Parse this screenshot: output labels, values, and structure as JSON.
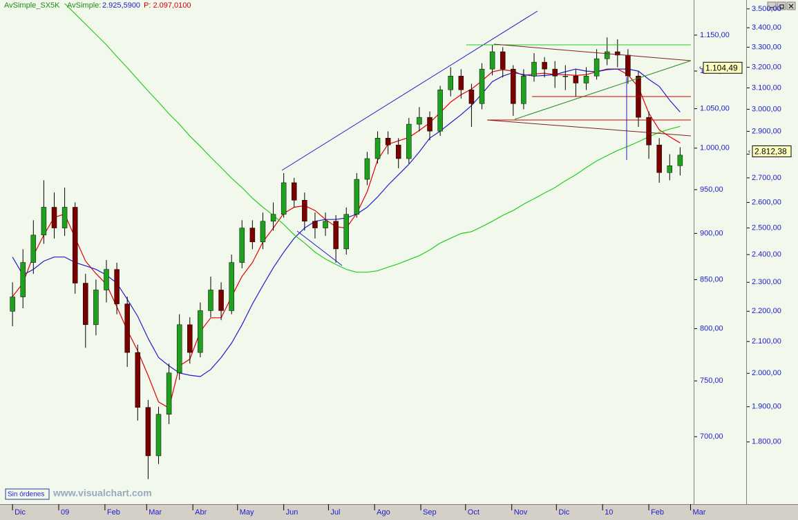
{
  "chart_data": {
    "type": "candlestick",
    "header": {
      "name": "AvSimple_SX5K",
      "label": "AvSimple:",
      "value_text": "2.925,5900",
      "p_text": "P: 2.097,0100"
    },
    "footer": {
      "status": "Sin órdenes",
      "watermark": "www.visualchart.com"
    },
    "log_scale": true,
    "grid": false,
    "up_color": "#1fa01f",
    "down_color": "#7a0000",
    "wick_color": "#000000",
    "xlim": [
      -1.2,
      65.3
    ],
    "xticks": [
      {
        "value": 0,
        "label": "Dic"
      },
      {
        "value": 4.43,
        "label": "09"
      },
      {
        "value": 8.86,
        "label": "Feb"
      },
      {
        "value": 12.86,
        "label": "Mar"
      },
      {
        "value": 17.29,
        "label": "Abr"
      },
      {
        "value": 21.57,
        "label": "May"
      },
      {
        "value": 26,
        "label": "Jun"
      },
      {
        "value": 30.29,
        "label": "Jul"
      },
      {
        "value": 34.71,
        "label": "Ago"
      },
      {
        "value": 39.14,
        "label": "Sep"
      },
      {
        "value": 43.43,
        "label": "Oct"
      },
      {
        "value": 47.86,
        "label": "Nov"
      },
      {
        "value": 52.14,
        "label": "Dic"
      },
      {
        "value": 56.57,
        "label": "10"
      },
      {
        "value": 61,
        "label": "Feb"
      },
      {
        "value": 65,
        "label": "Mar"
      }
    ],
    "ylim": [
      644,
      1201
    ],
    "yticks": [
      {
        "value": 700,
        "label": "700,00"
      },
      {
        "value": 750,
        "label": "750,00"
      },
      {
        "value": 800,
        "label": "800,00"
      },
      {
        "value": 850,
        "label": "850,00"
      },
      {
        "value": 900,
        "label": "900,00"
      },
      {
        "value": 950,
        "label": "950,00"
      },
      {
        "value": 1000,
        "label": "1.000,00"
      },
      {
        "value": 1050,
        "label": "1.050,00"
      },
      {
        "value": 1100,
        "label": "1.100,00"
      },
      {
        "value": 1150,
        "label": "1.150,00"
      }
    ],
    "y2lim": [
      1636,
      3548
    ],
    "y2ticks": [
      {
        "value": 1800,
        "label": "1.800,00"
      },
      {
        "value": 1900,
        "label": "1.900,00"
      },
      {
        "value": 2000,
        "label": "2.000,00"
      },
      {
        "value": 2100,
        "label": "2.100,00"
      },
      {
        "value": 2200,
        "label": "2.200,00"
      },
      {
        "value": 2300,
        "label": "2.300,00"
      },
      {
        "value": 2400,
        "label": "2.400,00"
      },
      {
        "value": 2500,
        "label": "2.500,00"
      },
      {
        "value": 2600,
        "label": "2.600,00"
      },
      {
        "value": 2700,
        "label": "2.700,00"
      },
      {
        "value": 2800,
        "label": "2.800,00"
      },
      {
        "value": 2900,
        "label": "2.900,00"
      },
      {
        "value": 3000,
        "label": "3.000,00"
      },
      {
        "value": 3100,
        "label": "3.100,00"
      },
      {
        "value": 3200,
        "label": "3.200,00"
      },
      {
        "value": 3300,
        "label": "3.300,00"
      },
      {
        "value": 3400,
        "label": "3.400,00"
      },
      {
        "value": 3500,
        "label": "3.500,00"
      }
    ],
    "price_markers": [
      {
        "value": 1104.49,
        "label": "1.104,49",
        "axis": "y"
      },
      {
        "value": 2812.38,
        "label": "2.812,38",
        "axis": "y2"
      }
    ],
    "ohlc": {
      "axis": "y2",
      "open": [
        2200,
        2249,
        2371,
        2473,
        2581,
        2500,
        2581,
        2297,
        2155,
        2273,
        2346,
        2225,
        2065,
        1898,
        1762,
        1878,
        2001,
        2155,
        2065,
        2202,
        2273,
        2202,
        2371,
        2500,
        2447,
        2526,
        2553,
        2680,
        2609,
        2526,
        2500,
        2526,
        2421,
        2553,
        2694,
        2781,
        2870,
        2840,
        2781,
        2932,
        2963,
        2901,
        3091,
        3157,
        3091,
        3026,
        3191,
        3277,
        3191,
        3026,
        3157,
        3225,
        3191,
        3157,
        3157,
        3123,
        3157,
        3242,
        3277,
        3260,
        3157,
        2963,
        2840,
        2722,
        2751
      ],
      "high": [
        2300,
        2420,
        2530,
        2690,
        2640,
        2660,
        2600,
        2330,
        2310,
        2380,
        2370,
        2250,
        2090,
        1920,
        1900,
        2030,
        2190,
        2180,
        2230,
        2320,
        2300,
        2400,
        2530,
        2530,
        2560,
        2600,
        2720,
        2700,
        2640,
        2560,
        2560,
        2550,
        2580,
        2720,
        2810,
        2900,
        2900,
        2870,
        2960,
        3010,
        2990,
        3110,
        3200,
        3190,
        3120,
        3220,
        3310,
        3300,
        3210,
        3190,
        3270,
        3250,
        3230,
        3210,
        3190,
        3200,
        3290,
        3350,
        3340,
        3290,
        3180,
        2990,
        2870,
        2800,
        2830
      ],
      "low": [
        2150,
        2210,
        2330,
        2440,
        2460,
        2470,
        2260,
        2080,
        2120,
        2230,
        2190,
        2020,
        1860,
        1700,
        1740,
        1850,
        1980,
        2030,
        2050,
        2180,
        2170,
        2190,
        2350,
        2420,
        2420,
        2490,
        2540,
        2580,
        2490,
        2460,
        2470,
        2370,
        2400,
        2540,
        2670,
        2760,
        2800,
        2740,
        2760,
        2900,
        2860,
        2880,
        3060,
        3050,
        2920,
        3000,
        3160,
        3150,
        2970,
        3000,
        3130,
        3150,
        3100,
        3090,
        3060,
        3090,
        3140,
        3210,
        3200,
        3120,
        2920,
        2780,
        2680,
        2690,
        2710
      ],
      "close": [
        2249,
        2371,
        2473,
        2581,
        2500,
        2581,
        2297,
        2155,
        2273,
        2346,
        2225,
        2065,
        1898,
        1762,
        1878,
        2001,
        2155,
        2065,
        2202,
        2273,
        2202,
        2371,
        2500,
        2447,
        2526,
        2553,
        2680,
        2609,
        2526,
        2500,
        2526,
        2421,
        2553,
        2694,
        2781,
        2870,
        2840,
        2781,
        2932,
        2963,
        2901,
        3091,
        3157,
        3091,
        3026,
        3191,
        3277,
        3191,
        3026,
        3157,
        3225,
        3191,
        3157,
        3157,
        3123,
        3157,
        3242,
        3277,
        3260,
        3157,
        2963,
        2840,
        2722,
        2751,
        2796
      ]
    },
    "moving_averages": [
      {
        "color": "#e00000",
        "axis": "y2",
        "values": [
          2250,
          2297,
          2396,
          2473,
          2541,
          2554,
          2463,
          2376,
          2331,
          2293,
          2215,
          2137,
          2070,
          1993,
          1914,
          1896,
          2023,
          2044,
          2133,
          2178,
          2178,
          2250,
          2321,
          2371,
          2447,
          2500,
          2557,
          2581,
          2587,
          2568,
          2533,
          2505,
          2500,
          2557,
          2643,
          2775,
          2843,
          2858,
          2873,
          2904,
          2938,
          2985,
          3033,
          3068,
          3094,
          3134,
          3178,
          3188,
          3181,
          3160,
          3167,
          3171,
          3164,
          3164,
          3160,
          3164,
          3178,
          3191,
          3191,
          3164,
          3104,
          2982,
          2907,
          2876,
          2849
        ]
      },
      {
        "color": "#1c1ccc",
        "axis": "y2",
        "values": [
          2391,
          2326,
          2346,
          2376,
          2391,
          2391,
          2371,
          2359,
          2346,
          2326,
          2297,
          2241,
          2183,
          2110,
          2049,
          2023,
          2001,
          1994,
          1990,
          2012,
          2049,
          2095,
          2155,
          2225,
          2289,
          2352,
          2409,
          2461,
          2500,
          2526,
          2533,
          2533,
          2539,
          2554,
          2581,
          2622,
          2670,
          2713,
          2757,
          2810,
          2870,
          2901,
          2938,
          2975,
          3017,
          3072,
          3130,
          3157,
          3174,
          3164,
          3157,
          3160,
          3164,
          3178,
          3191,
          3181,
          3178,
          3188,
          3191,
          3191,
          3181,
          3141,
          3107,
          3042,
          2987
        ]
      },
      {
        "color": "#22cc22",
        "axis": "y2",
        "values": [
          null,
          null,
          null,
          null,
          null,
          3529,
          3474,
          3419,
          3365,
          3312,
          3253,
          3198,
          3141,
          3085,
          3033,
          2979,
          2932,
          2879,
          2834,
          2787,
          2743,
          2699,
          2660,
          2617,
          2581,
          2549,
          2514,
          2474,
          2443,
          2409,
          2384,
          2364,
          2346,
          2336,
          2336,
          2341,
          2354,
          2366,
          2381,
          2396,
          2417,
          2443,
          2461,
          2479,
          2486,
          2505,
          2526,
          2549,
          2568,
          2593,
          2615,
          2638,
          2660,
          2688,
          2713,
          2743,
          2771,
          2794,
          2816,
          2834,
          2854,
          2876,
          2895,
          2910,
          2922
        ]
      }
    ]
  }
}
